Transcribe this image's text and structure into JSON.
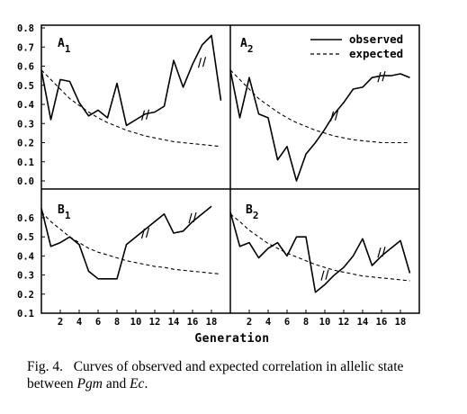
{
  "figure": {
    "caption_label": "Fig. 4.",
    "caption_pre": "Curves of observed and expected correlation in allelic state between ",
    "caption_gene1": "Pgm",
    "caption_mid": " and ",
    "caption_gene2": "Ec",
    "caption_end": "."
  },
  "chart_data": [
    {
      "type": "line",
      "panel_letter": "A",
      "panel_subscript": "1",
      "xlabel": "",
      "xlim": [
        0,
        20
      ],
      "ylim": [
        0,
        0.8
      ],
      "yticks": [
        "0.0",
        "0.1",
        "0.2",
        "0.3",
        "0.4",
        "0.5",
        "0.6",
        "0.7",
        "0.8"
      ],
      "xticks": [],
      "series": [
        {
          "name": "observed",
          "style": "solid",
          "x": [
            0,
            1,
            2,
            3,
            4,
            5,
            6,
            7,
            8,
            9,
            10,
            11,
            12,
            13,
            14,
            15,
            16,
            17,
            18,
            19
          ],
          "y": [
            0.58,
            0.32,
            0.53,
            0.52,
            0.41,
            0.34,
            0.37,
            0.33,
            0.51,
            0.29,
            0.32,
            0.35,
            0.36,
            0.39,
            0.63,
            0.49,
            0.61,
            0.71,
            0.76,
            0.42
          ]
        },
        {
          "name": "expected",
          "style": "dashed",
          "x": [
            0,
            1,
            2,
            3,
            4,
            5,
            6,
            7,
            8,
            9,
            10,
            11,
            12,
            13,
            14,
            15,
            16,
            17,
            18,
            19
          ],
          "y": [
            0.58,
            0.53,
            0.48,
            0.43,
            0.395,
            0.36,
            0.33,
            0.305,
            0.285,
            0.265,
            0.25,
            0.235,
            0.225,
            0.215,
            0.205,
            0.2,
            0.195,
            0.19,
            0.185,
            0.18
          ]
        }
      ],
      "break_marks": [
        [
          11,
          0.345
        ],
        [
          17,
          0.62
        ]
      ]
    },
    {
      "type": "line",
      "panel_letter": "A",
      "panel_subscript": "2",
      "xlim": [
        0,
        20
      ],
      "ylim": [
        0,
        0.8
      ],
      "yticks": [],
      "xticks": [],
      "series": [
        {
          "name": "observed",
          "style": "solid",
          "x": [
            0,
            1,
            2,
            3,
            4,
            5,
            6,
            7,
            8,
            9,
            10,
            11,
            12,
            13,
            14,
            15,
            16,
            17,
            18,
            19
          ],
          "y": [
            0.58,
            0.33,
            0.54,
            0.35,
            0.33,
            0.11,
            0.18,
            0.0,
            0.14,
            0.2,
            0.27,
            0.35,
            0.41,
            0.48,
            0.49,
            0.54,
            0.55,
            0.55,
            0.56,
            0.54
          ]
        },
        {
          "name": "expected",
          "style": "dashed",
          "x": [
            0,
            1,
            2,
            3,
            4,
            5,
            6,
            7,
            8,
            9,
            10,
            11,
            12,
            13,
            14,
            15,
            16,
            17,
            18,
            19
          ],
          "y": [
            0.58,
            0.53,
            0.48,
            0.43,
            0.395,
            0.36,
            0.33,
            0.305,
            0.285,
            0.265,
            0.25,
            0.235,
            0.225,
            0.215,
            0.21,
            0.205,
            0.2,
            0.2,
            0.2,
            0.2
          ]
        }
      ],
      "break_marks": [
        [
          11,
          0.34
        ],
        [
          16,
          0.545
        ]
      ]
    },
    {
      "type": "line",
      "panel_letter": "B",
      "panel_subscript": "1",
      "xlim": [
        0,
        20
      ],
      "ylim": [
        0.1,
        0.7
      ],
      "yticks": [
        "0.1",
        "0.2",
        "0.3",
        "0.4",
        "0.5",
        "0.6"
      ],
      "xticks": [
        "2",
        "4",
        "6",
        "8",
        "10",
        "12",
        "14",
        "16",
        "18"
      ],
      "series": [
        {
          "name": "observed",
          "style": "solid",
          "x": [
            0,
            1,
            2,
            3,
            4,
            5,
            6,
            7,
            8,
            9,
            10,
            11,
            12,
            13,
            14,
            15,
            16,
            17,
            18
          ],
          "y": [
            0.65,
            0.45,
            0.47,
            0.5,
            0.46,
            0.32,
            0.28,
            0.28,
            0.28,
            0.46,
            0.5,
            0.54,
            0.58,
            0.62,
            0.52,
            0.53,
            0.58,
            0.62,
            0.66
          ]
        },
        {
          "name": "expected",
          "style": "dashed",
          "x": [
            0,
            1,
            2,
            3,
            4,
            5,
            6,
            7,
            8,
            9,
            10,
            11,
            12,
            13,
            14,
            15,
            16,
            17,
            18,
            19
          ],
          "y": [
            0.63,
            0.58,
            0.54,
            0.5,
            0.47,
            0.44,
            0.42,
            0.405,
            0.39,
            0.375,
            0.365,
            0.355,
            0.345,
            0.34,
            0.33,
            0.325,
            0.32,
            0.315,
            0.31,
            0.305
          ]
        }
      ],
      "break_marks": [
        [
          11,
          0.52
        ],
        [
          16,
          0.6
        ]
      ]
    },
    {
      "type": "line",
      "panel_letter": "B",
      "panel_subscript": "2",
      "xlim": [
        0,
        20
      ],
      "ylim": [
        0.1,
        0.7
      ],
      "yticks": [],
      "xticks": [
        "2",
        "4",
        "6",
        "8",
        "10",
        "12",
        "14",
        "16",
        "18"
      ],
      "series": [
        {
          "name": "observed",
          "style": "solid",
          "x": [
            0,
            1,
            2,
            3,
            4,
            5,
            6,
            7,
            8,
            9,
            10,
            11,
            12,
            13,
            14,
            15,
            16,
            17,
            18,
            19
          ],
          "y": [
            0.63,
            0.45,
            0.47,
            0.39,
            0.44,
            0.47,
            0.4,
            0.5,
            0.5,
            0.21,
            0.25,
            0.3,
            0.34,
            0.4,
            0.49,
            0.35,
            0.4,
            0.44,
            0.48,
            0.31
          ]
        },
        {
          "name": "expected",
          "style": "dashed",
          "x": [
            0,
            1,
            2,
            3,
            4,
            5,
            6,
            7,
            8,
            9,
            10,
            11,
            12,
            13,
            14,
            15,
            16,
            17,
            18,
            19
          ],
          "y": [
            0.62,
            0.58,
            0.535,
            0.5,
            0.465,
            0.44,
            0.415,
            0.395,
            0.375,
            0.355,
            0.34,
            0.325,
            0.315,
            0.305,
            0.295,
            0.29,
            0.285,
            0.28,
            0.275,
            0.27
          ]
        }
      ],
      "break_marks": [
        [
          10,
          0.3
        ],
        [
          16,
          0.42
        ]
      ]
    }
  ],
  "legend": {
    "observed_label": "observed",
    "expected_label": "expected",
    "placement": "top-right"
  },
  "x_title": "Generation"
}
